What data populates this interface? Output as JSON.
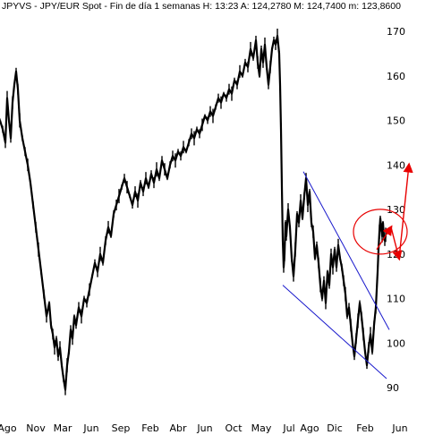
{
  "header": {
    "text": "JPYVS - JPY/EUR Spot - Fin de día 1 semanas  H: 13:23  A: 124,2780  M: 124,7400  m: 123,8600"
  },
  "chart_data": {
    "type": "line",
    "title": "JPYVS - JPY/EUR Spot - Fin de día 1 semanas",
    "quote": {
      "H": "13:23",
      "A": "124,2780",
      "M": "124,7400",
      "m": "123,8600"
    },
    "xlabel": "",
    "ylabel": "",
    "ylim": [
      88,
      172
    ],
    "y_ticks": [
      90,
      100,
      110,
      120,
      130,
      140,
      150,
      160,
      170
    ],
    "x_tick_labels": [
      "Ago",
      "Nov",
      "Mar",
      "Jun",
      "Sep",
      "Feb",
      "Abr",
      "Jun",
      "Oct",
      "May",
      "Jul",
      "Ago",
      "Dic",
      "Feb",
      "Jun"
    ],
    "grid": false,
    "series": [
      {
        "values": [
          [
            0,
            150
          ],
          [
            3,
            148
          ],
          [
            6,
            145
          ],
          [
            8,
            155
          ],
          [
            10,
            150
          ],
          [
            12,
            146
          ],
          [
            14,
            154
          ],
          [
            16,
            158
          ],
          [
            18,
            161
          ],
          [
            20,
            157
          ],
          [
            22,
            150
          ],
          [
            25,
            146
          ],
          [
            28,
            143
          ],
          [
            31,
            140
          ],
          [
            34,
            136
          ],
          [
            37,
            131
          ],
          [
            40,
            126
          ],
          [
            43,
            121
          ],
          [
            46,
            116
          ],
          [
            49,
            111
          ],
          [
            52,
            106
          ],
          [
            55,
            109
          ],
          [
            57,
            104
          ],
          [
            59,
            102
          ],
          [
            61,
            99
          ],
          [
            63,
            101
          ],
          [
            65,
            97
          ],
          [
            67,
            99
          ],
          [
            69,
            95
          ],
          [
            71,
            92
          ],
          [
            73,
            89.5
          ],
          [
            75,
            95
          ],
          [
            77,
            98
          ],
          [
            79,
            103
          ],
          [
            81,
            101
          ],
          [
            83,
            106
          ],
          [
            85,
            104
          ],
          [
            88,
            108
          ],
          [
            91,
            106
          ],
          [
            94,
            110
          ],
          [
            97,
            109
          ],
          [
            100,
            112
          ],
          [
            103,
            115
          ],
          [
            106,
            118
          ],
          [
            109,
            116
          ],
          [
            112,
            120
          ],
          [
            115,
            118
          ],
          [
            118,
            123
          ],
          [
            121,
            126
          ],
          [
            124,
            124
          ],
          [
            127,
            129
          ],
          [
            130,
            131
          ],
          [
            133,
            133
          ],
          [
            136,
            135
          ],
          [
            139,
            137
          ],
          [
            142,
            135
          ],
          [
            145,
            133
          ],
          [
            148,
            131
          ],
          [
            151,
            134
          ],
          [
            154,
            132
          ],
          [
            157,
            136
          ],
          [
            160,
            134
          ],
          [
            163,
            137
          ],
          [
            166,
            135
          ],
          [
            169,
            138
          ],
          [
            172,
            136
          ],
          [
            175,
            139
          ],
          [
            178,
            137
          ],
          [
            181,
            141
          ],
          [
            184,
            139
          ],
          [
            187,
            137
          ],
          [
            190,
            140
          ],
          [
            193,
            142
          ],
          [
            196,
            141
          ],
          [
            199,
            143
          ],
          [
            202,
            142
          ],
          [
            205,
            144
          ],
          [
            208,
            143
          ],
          [
            211,
            145
          ],
          [
            214,
            147
          ],
          [
            217,
            146
          ],
          [
            220,
            148
          ],
          [
            223,
            147
          ],
          [
            226,
            149
          ],
          [
            229,
            151
          ],
          [
            232,
            150
          ],
          [
            235,
            152
          ],
          [
            238,
            151
          ],
          [
            241,
            153
          ],
          [
            244,
            155
          ],
          [
            247,
            154
          ],
          [
            250,
            156
          ],
          [
            253,
            155
          ],
          [
            256,
            157
          ],
          [
            259,
            156
          ],
          [
            262,
            159
          ],
          [
            265,
            158
          ],
          [
            268,
            161
          ],
          [
            271,
            160
          ],
          [
            274,
            163
          ],
          [
            277,
            162
          ],
          [
            280,
            166
          ],
          [
            283,
            164
          ],
          [
            286,
            168
          ],
          [
            288,
            163
          ],
          [
            290,
            160
          ],
          [
            292,
            166
          ],
          [
            294,
            163
          ],
          [
            296,
            167
          ],
          [
            298,
            162
          ],
          [
            300,
            158
          ],
          [
            302,
            162
          ],
          [
            304,
            166
          ],
          [
            306,
            168
          ],
          [
            308,
            167
          ],
          [
            310,
            169
          ],
          [
            312,
            165
          ],
          [
            313,
            158
          ],
          [
            314,
            148
          ],
          [
            315,
            135
          ],
          [
            316,
            123
          ],
          [
            317,
            117
          ],
          [
            318,
            120
          ],
          [
            319,
            127
          ],
          [
            320,
            124
          ],
          [
            322,
            130
          ],
          [
            324,
            126
          ],
          [
            326,
            119
          ],
          [
            328,
            115
          ],
          [
            330,
            121
          ],
          [
            332,
            129
          ],
          [
            334,
            127
          ],
          [
            336,
            132
          ],
          [
            338,
            128
          ],
          [
            340,
            133
          ],
          [
            342,
            137
          ],
          [
            344,
            131
          ],
          [
            346,
            134
          ],
          [
            348,
            127
          ],
          [
            350,
            125
          ],
          [
            352,
            119
          ],
          [
            354,
            122
          ],
          [
            356,
            118
          ],
          [
            358,
            113
          ],
          [
            360,
            110
          ],
          [
            362,
            114
          ],
          [
            364,
            109
          ],
          [
            366,
            116
          ],
          [
            368,
            113
          ],
          [
            370,
            120
          ],
          [
            372,
            117
          ],
          [
            374,
            121
          ],
          [
            376,
            117
          ],
          [
            378,
            122
          ],
          [
            380,
            119
          ],
          [
            382,
            117
          ],
          [
            384,
            114
          ],
          [
            386,
            111
          ],
          [
            388,
            106
          ],
          [
            390,
            108
          ],
          [
            392,
            104
          ],
          [
            394,
            100
          ],
          [
            396,
            97
          ],
          [
            398,
            101
          ],
          [
            400,
            105
          ],
          [
            402,
            109
          ],
          [
            404,
            106
          ],
          [
            406,
            102
          ],
          [
            408,
            98
          ],
          [
            410,
            95
          ],
          [
            412,
            99
          ],
          [
            414,
            102
          ],
          [
            416,
            98
          ],
          [
            418,
            104
          ],
          [
            420,
            108
          ],
          [
            421,
            112
          ],
          [
            422,
            116
          ],
          [
            423,
            121
          ],
          [
            424,
            125
          ],
          [
            425,
            128
          ],
          [
            426,
            126
          ],
          [
            427,
            124
          ],
          [
            428,
            127
          ],
          [
            429,
            124
          ],
          [
            430,
            123
          ],
          [
            431,
            124.3
          ]
        ]
      }
    ],
    "annotations": {
      "channel_upper": [
        [
          339,
          138.5
        ],
        [
          435,
          103
        ]
      ],
      "channel_lower": [
        [
          316,
          113
        ],
        [
          432,
          92
        ]
      ],
      "ellipse_center": [
        425,
        125
      ],
      "arrows": [
        [
          [
            421,
            121
          ],
          [
            437,
            126
          ]
        ],
        [
          [
            437,
            126
          ],
          [
            446,
            119
          ]
        ],
        [
          [
            446,
            119
          ],
          [
            457,
            140
          ]
        ]
      ]
    },
    "colors": {
      "price": "#000000",
      "channel": "#1a1acc",
      "annotation": "#e80000"
    }
  }
}
